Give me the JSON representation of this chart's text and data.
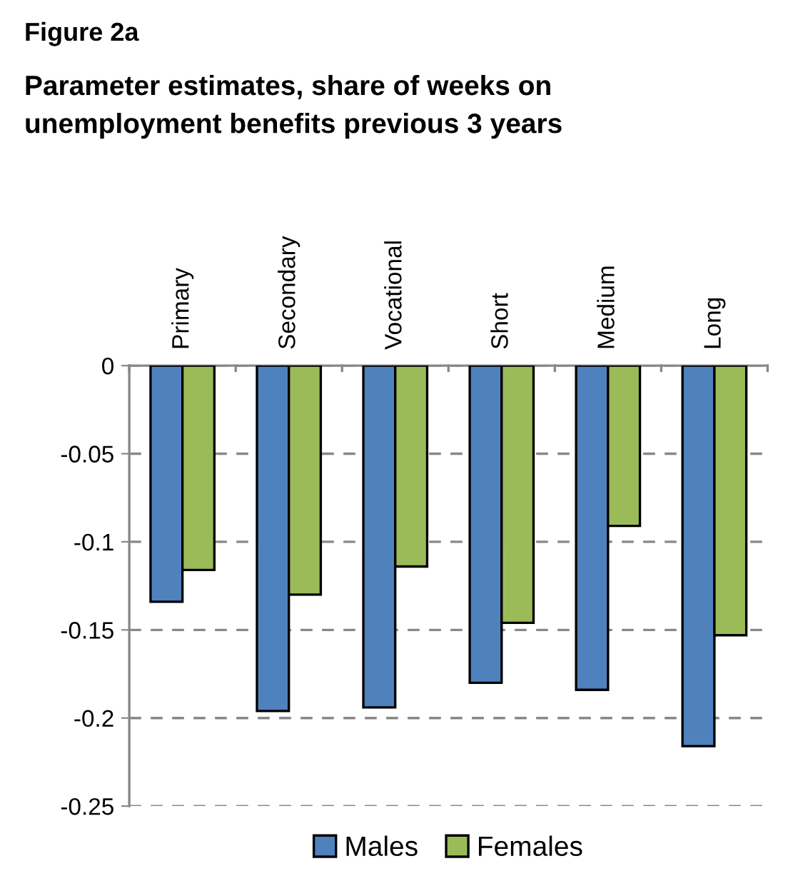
{
  "chart_data": {
    "type": "bar",
    "title": "Figure 2a",
    "subtitle": "Parameter estimates, share of weeks on\nunemployment benefits previous 3 years",
    "categories": [
      "Primary",
      "Secondary",
      "Vocational",
      "Short",
      "Medium",
      "Long"
    ],
    "series": [
      {
        "name": "Males",
        "color": "#4f81bd",
        "values": [
          -0.134,
          -0.196,
          -0.194,
          -0.18,
          -0.184,
          -0.216
        ]
      },
      {
        "name": "Females",
        "color": "#9bbb59",
        "values": [
          -0.116,
          -0.13,
          -0.114,
          -0.146,
          -0.091,
          -0.153
        ]
      }
    ],
    "ylim": [
      -0.25,
      0
    ],
    "yticks": [
      -0.25,
      -0.2,
      -0.15,
      -0.1,
      -0.05,
      0
    ],
    "grid": "y",
    "legend": "bottom"
  }
}
